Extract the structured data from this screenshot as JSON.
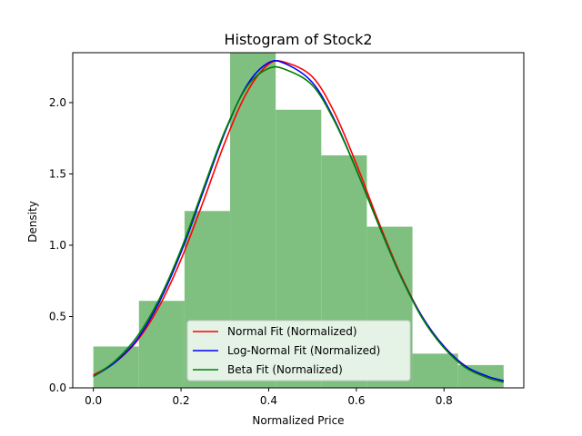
{
  "chart_data": {
    "type": "bar",
    "title": "Histogram of Stock2",
    "xlabel": "Normalized Price",
    "ylabel": "Density",
    "xlim": [
      -0.047,
      0.982
    ],
    "ylim": [
      0,
      2.35
    ],
    "xticks": [
      0.0,
      0.2,
      0.4,
      0.6,
      0.8
    ],
    "xtick_labels": [
      "0.0",
      "0.2",
      "0.4",
      "0.6",
      "0.8"
    ],
    "yticks": [
      0.0,
      0.5,
      1.0,
      1.5,
      2.0
    ],
    "ytick_labels": [
      "0.0",
      "0.5",
      "1.0",
      "1.5",
      "2.0"
    ],
    "grid": false,
    "legend_position": "lower-center",
    "histogram": {
      "color": "#7fc080",
      "bin_edges": [
        0.0,
        0.104,
        0.208,
        0.312,
        0.416,
        0.52,
        0.624,
        0.728,
        0.832,
        0.936
      ],
      "densities": [
        0.29,
        0.61,
        1.24,
        2.35,
        1.95,
        1.63,
        1.13,
        0.24,
        0.16
      ]
    },
    "series": [
      {
        "name": "Normal Fit (Normalized)",
        "color": "#ff0000",
        "x": [
          0.0,
          0.05,
          0.1,
          0.15,
          0.2,
          0.25,
          0.3,
          0.35,
          0.4,
          0.44,
          0.5,
          0.55,
          0.6,
          0.65,
          0.7,
          0.75,
          0.8,
          0.85,
          0.9,
          0.936
        ],
        "y": [
          0.09,
          0.18,
          0.33,
          0.57,
          0.9,
          1.3,
          1.72,
          2.07,
          2.27,
          2.28,
          2.18,
          1.93,
          1.57,
          1.17,
          0.8,
          0.5,
          0.29,
          0.15,
          0.07,
          0.05
        ]
      },
      {
        "name": "Log-Normal Fit (Normalized)",
        "color": "#0000ff",
        "x": [
          0.0,
          0.05,
          0.1,
          0.15,
          0.2,
          0.25,
          0.3,
          0.35,
          0.4,
          0.44,
          0.5,
          0.55,
          0.6,
          0.65,
          0.7,
          0.75,
          0.8,
          0.85,
          0.9,
          0.936
        ],
        "y": [
          0.08,
          0.18,
          0.34,
          0.6,
          0.95,
          1.37,
          1.79,
          2.12,
          2.28,
          2.27,
          2.14,
          1.88,
          1.53,
          1.15,
          0.79,
          0.5,
          0.29,
          0.15,
          0.08,
          0.05
        ]
      },
      {
        "name": "Beta Fit (Normalized)",
        "color": "#008000",
        "x": [
          0.0,
          0.05,
          0.1,
          0.15,
          0.2,
          0.25,
          0.3,
          0.35,
          0.4,
          0.44,
          0.5,
          0.55,
          0.6,
          0.65,
          0.7,
          0.75,
          0.8,
          0.85,
          0.9,
          0.936
        ],
        "y": [
          0.08,
          0.19,
          0.36,
          0.62,
          0.97,
          1.39,
          1.8,
          2.11,
          2.24,
          2.23,
          2.12,
          1.87,
          1.53,
          1.15,
          0.79,
          0.49,
          0.28,
          0.14,
          0.07,
          0.04
        ]
      }
    ]
  }
}
